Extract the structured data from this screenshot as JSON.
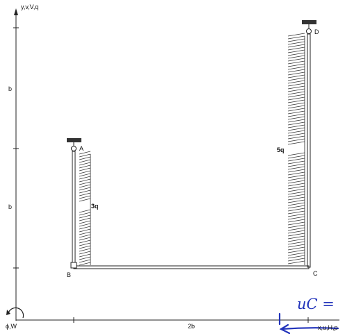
{
  "axes": {
    "y_axis_label": "y,v,V,q",
    "x_axis_label": "x,u,H,p",
    "rotation_label": "ϕ,W",
    "left_dim_upper": "b",
    "left_dim_lower": "b",
    "bottom_dim": "2b"
  },
  "nodes": {
    "a": "A",
    "b": "B",
    "c": "C",
    "d": "D"
  },
  "loads": {
    "left_member": "3q",
    "right_member": "5q"
  },
  "annotation": {
    "handwritten": "uC ="
  },
  "colors": {
    "ink": "#111111",
    "handwriting": "#2233bb"
  }
}
